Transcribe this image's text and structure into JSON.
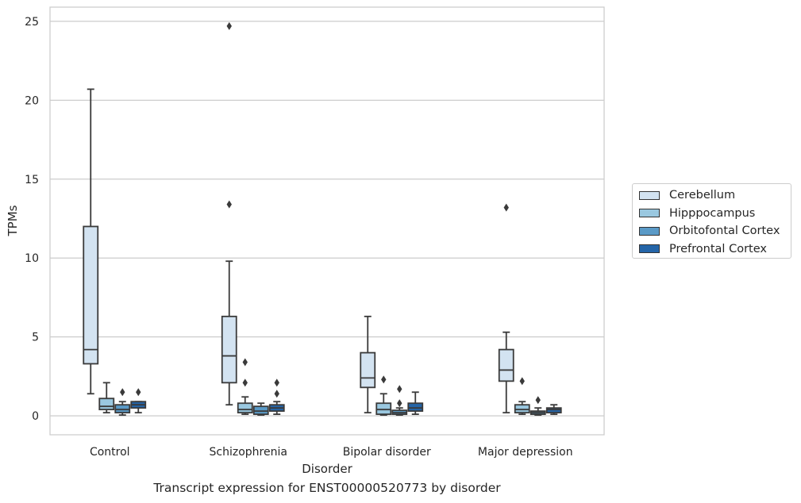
{
  "chart_data": {
    "type": "boxplot",
    "caption": "Transcript expression for ENST00000520773 by disorder",
    "xlabel": "Disorder",
    "ylabel": "TPMs",
    "ylim": [
      -1.2,
      25.9
    ],
    "yticks": [
      0,
      5,
      10,
      15,
      20,
      25
    ],
    "grid": "horizontal",
    "legend_position": "right",
    "categories": [
      "Control",
      "Schizophrenia",
      "Bipolar disorder",
      "Major depression"
    ],
    "series": [
      {
        "name": "Cerebellum",
        "color": "#d3e3f1",
        "boxes": [
          {
            "whislo": 1.4,
            "q1": 3.3,
            "med": 4.2,
            "q3": 12.0,
            "whishi": 20.7,
            "fliers": []
          },
          {
            "whislo": 0.7,
            "q1": 2.1,
            "med": 3.8,
            "q3": 6.3,
            "whishi": 9.8,
            "fliers": [
              13.4,
              24.7
            ]
          },
          {
            "whislo": 0.2,
            "q1": 1.8,
            "med": 2.4,
            "q3": 4.0,
            "whishi": 6.3,
            "fliers": []
          },
          {
            "whislo": 0.2,
            "q1": 2.2,
            "med": 2.9,
            "q3": 4.2,
            "whishi": 5.3,
            "fliers": [
              13.2
            ]
          }
        ]
      },
      {
        "name": "Hipppocampus",
        "color": "#9ac8e0",
        "boxes": [
          {
            "whislo": 0.2,
            "q1": 0.4,
            "med": 0.6,
            "q3": 1.1,
            "whishi": 2.1,
            "fliers": []
          },
          {
            "whislo": 0.1,
            "q1": 0.2,
            "med": 0.4,
            "q3": 0.8,
            "whishi": 1.2,
            "fliers": [
              2.1,
              3.4
            ]
          },
          {
            "whislo": 0.05,
            "q1": 0.1,
            "med": 0.4,
            "q3": 0.8,
            "whishi": 1.4,
            "fliers": [
              2.3
            ]
          },
          {
            "whislo": 0.1,
            "q1": 0.2,
            "med": 0.4,
            "q3": 0.7,
            "whishi": 0.9,
            "fliers": [
              2.2
            ]
          }
        ]
      },
      {
        "name": "Orbitofontal Cortex",
        "color": "#5a9ac7",
        "boxes": [
          {
            "whislo": 0.05,
            "q1": 0.2,
            "med": 0.4,
            "q3": 0.7,
            "whishi": 0.9,
            "fliers": [
              1.5
            ]
          },
          {
            "whislo": 0.05,
            "q1": 0.1,
            "med": 0.3,
            "q3": 0.6,
            "whishi": 0.8,
            "fliers": []
          },
          {
            "whislo": 0.05,
            "q1": 0.1,
            "med": 0.2,
            "q3": 0.35,
            "whishi": 0.5,
            "fliers": [
              0.8,
              1.7
            ]
          },
          {
            "whislo": 0.05,
            "q1": 0.1,
            "med": 0.2,
            "q3": 0.3,
            "whishi": 0.5,
            "fliers": [
              1.0
            ]
          }
        ]
      },
      {
        "name": "Prefrontal Cortex",
        "color": "#2465a8",
        "boxes": [
          {
            "whislo": 0.2,
            "q1": 0.5,
            "med": 0.7,
            "q3": 0.9,
            "whishi": 0.9,
            "fliers": [
              1.5
            ]
          },
          {
            "whislo": 0.1,
            "q1": 0.3,
            "med": 0.5,
            "q3": 0.7,
            "whishi": 0.9,
            "fliers": [
              1.4,
              2.1
            ]
          },
          {
            "whislo": 0.1,
            "q1": 0.3,
            "med": 0.5,
            "q3": 0.8,
            "whishi": 1.5,
            "fliers": []
          },
          {
            "whislo": 0.1,
            "q1": 0.2,
            "med": 0.4,
            "q3": 0.5,
            "whishi": 0.7,
            "fliers": []
          }
        ]
      }
    ]
  }
}
